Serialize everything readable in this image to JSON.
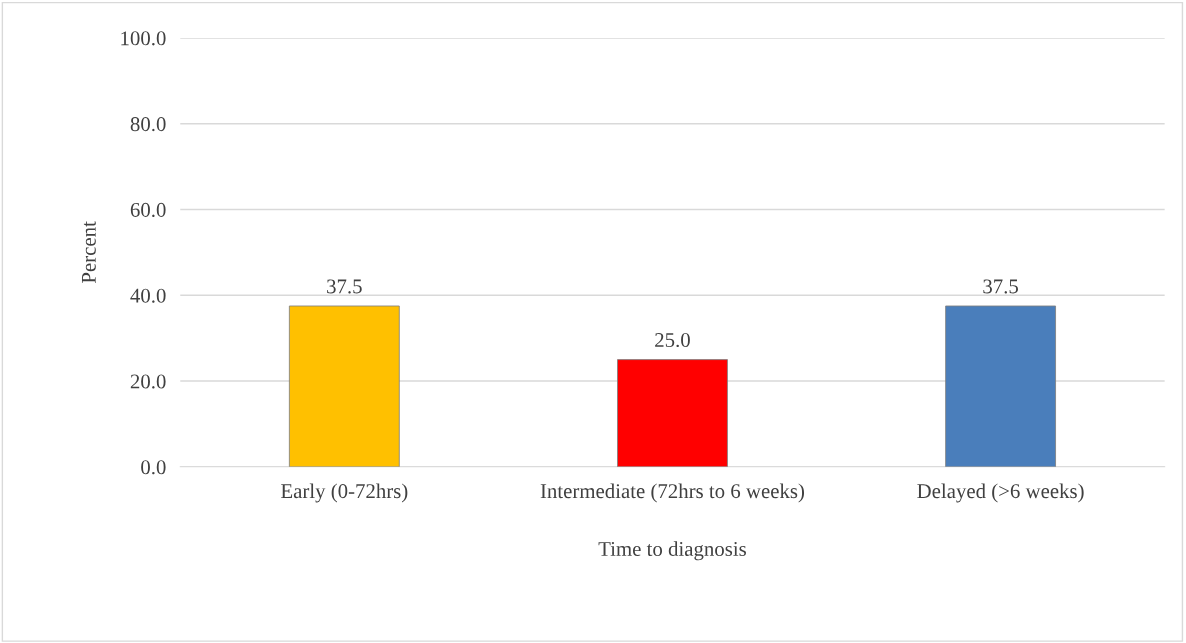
{
  "chart_data": {
    "type": "bar",
    "xlabel": "Time to diagnosis",
    "ylabel": "Percent",
    "categories": [
      "Early (0-72hrs)",
      "Intermediate (72hrs to 6 weeks)",
      "Delayed (>6 weeks)"
    ],
    "values": [
      37.5,
      25.0,
      37.5
    ],
    "value_labels": [
      "37.5",
      "25.0",
      "37.5"
    ],
    "colors": [
      "#ffc000",
      "#ff0000",
      "#4a7ebb"
    ],
    "ylim": [
      0,
      100
    ],
    "yticks": [
      {
        "value": 0,
        "label": "0.0"
      },
      {
        "value": 20,
        "label": "20.0"
      },
      {
        "value": 40,
        "label": "40.0"
      },
      {
        "value": 60,
        "label": "60.0"
      },
      {
        "value": 80,
        "label": "80.0"
      },
      {
        "value": 100,
        "label": "100.0"
      }
    ],
    "grid": "y",
    "legend": false
  }
}
